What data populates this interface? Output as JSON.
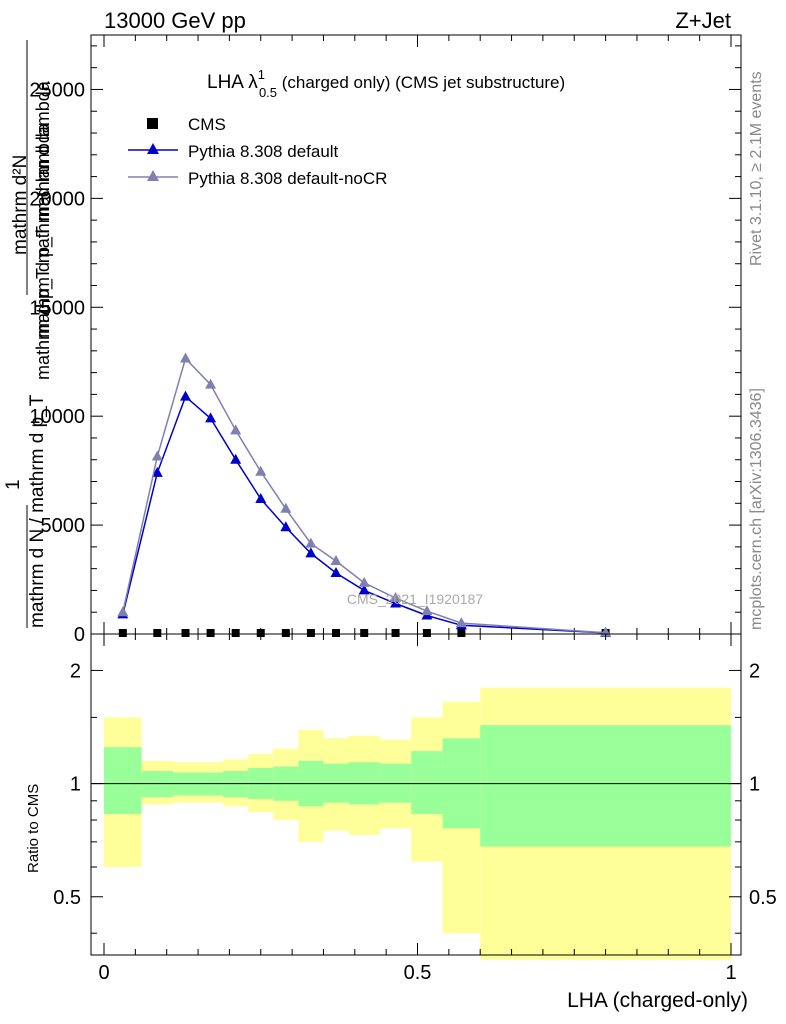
{
  "header": {
    "left": "13000 GeV pp",
    "right": "Z+Jet"
  },
  "side_text": {
    "rivet": "Rivet 3.1.10, ≥ 2.1M events",
    "mcplots": "mcplots.cern.ch [arXiv:1306.3436]"
  },
  "main": {
    "title_prefix": "LHA λ",
    "title_sup": "1",
    "title_sub": "0.5",
    "title_suffix": " (charged only) (CMS jet substructure)",
    "ylabel_top": "mathrm d²N",
    "ylabel_top2": "mathrm d p_T mathrm d lambda",
    "ylabel_mid": "mathrm d p_T mathrm d lambda",
    "ylabel_one": "1",
    "ylabel_bottom": "mathrm d N / mathrm d p_T",
    "watermark": "CMS_2021_I1920187",
    "yticks": [
      "0",
      "5000",
      "10000",
      "15000",
      "20000",
      "25000"
    ]
  },
  "ratio": {
    "ylabel": "Ratio to CMS",
    "yticks_left": [
      "0.5",
      "1",
      "2"
    ],
    "yticks_right": [
      "0.5",
      "1",
      "2"
    ],
    "xticks": [
      "0",
      "0.5",
      "1"
    ],
    "xlabel": "LHA (charged-only)"
  },
  "legend": {
    "cms": "CMS",
    "py_default": "Pythia 8.308 default",
    "py_nocr": "Pythia 8.308 default-noCR"
  },
  "colors": {
    "default": "#0000cc",
    "nocr": "#8080b0",
    "band_inner": "#99ff99",
    "band_outer": "#ffff99"
  },
  "chart_data": {
    "type": "line",
    "xlim": [
      0,
      1
    ],
    "ylim": [
      0,
      27500
    ],
    "x": [
      0.03,
      0.085,
      0.13,
      0.17,
      0.21,
      0.25,
      0.29,
      0.33,
      0.37,
      0.415,
      0.465,
      0.515,
      0.57,
      0.8
    ],
    "series": [
      {
        "name": "CMS",
        "values": [
          0,
          0,
          0,
          0,
          0,
          0,
          0,
          0,
          0,
          0,
          0,
          0,
          0,
          0
        ]
      },
      {
        "name": "Pythia 8.308 default",
        "values": [
          900,
          7400,
          10900,
          9900,
          8000,
          6200,
          4900,
          3700,
          2800,
          2000,
          1400,
          850,
          400,
          50
        ]
      },
      {
        "name": "Pythia 8.308 default-noCR",
        "values": [
          1000,
          8150,
          12650,
          11450,
          9350,
          7450,
          5750,
          4150,
          3350,
          2350,
          1650,
          1050,
          500,
          60
        ]
      }
    ],
    "ratio": {
      "ylim": [
        0.35,
        2.5
      ],
      "bins": [
        {
          "lo": 0.0,
          "hi": 0.06,
          "inner": [
            0.83,
            1.25
          ],
          "outer": [
            0.6,
            1.5
          ]
        },
        {
          "lo": 0.06,
          "hi": 0.11,
          "inner": [
            0.92,
            1.08
          ],
          "outer": [
            0.88,
            1.15
          ]
        },
        {
          "lo": 0.11,
          "hi": 0.15,
          "inner": [
            0.93,
            1.07
          ],
          "outer": [
            0.89,
            1.14
          ]
        },
        {
          "lo": 0.15,
          "hi": 0.19,
          "inner": [
            0.93,
            1.07
          ],
          "outer": [
            0.89,
            1.14
          ]
        },
        {
          "lo": 0.19,
          "hi": 0.23,
          "inner": [
            0.92,
            1.08
          ],
          "outer": [
            0.87,
            1.16
          ]
        },
        {
          "lo": 0.23,
          "hi": 0.27,
          "inner": [
            0.91,
            1.1
          ],
          "outer": [
            0.84,
            1.2
          ]
        },
        {
          "lo": 0.27,
          "hi": 0.31,
          "inner": [
            0.9,
            1.11
          ],
          "outer": [
            0.8,
            1.24
          ]
        },
        {
          "lo": 0.31,
          "hi": 0.35,
          "inner": [
            0.87,
            1.15
          ],
          "outer": [
            0.7,
            1.39
          ]
        },
        {
          "lo": 0.35,
          "hi": 0.39,
          "inner": [
            0.89,
            1.13
          ],
          "outer": [
            0.75,
            1.32
          ]
        },
        {
          "lo": 0.39,
          "hi": 0.44,
          "inner": [
            0.88,
            1.14
          ],
          "outer": [
            0.73,
            1.34
          ]
        },
        {
          "lo": 0.44,
          "hi": 0.49,
          "inner": [
            0.89,
            1.13
          ],
          "outer": [
            0.76,
            1.31
          ]
        },
        {
          "lo": 0.49,
          "hi": 0.54,
          "inner": [
            0.83,
            1.22
          ],
          "outer": [
            0.62,
            1.5
          ]
        },
        {
          "lo": 0.54,
          "hi": 0.6,
          "inner": [
            0.76,
            1.32
          ],
          "outer": [
            0.4,
            1.65
          ]
        },
        {
          "lo": 0.6,
          "hi": 1.0,
          "inner": [
            0.68,
            1.43
          ],
          "outer": [
            0.34,
            1.8
          ]
        }
      ]
    }
  }
}
